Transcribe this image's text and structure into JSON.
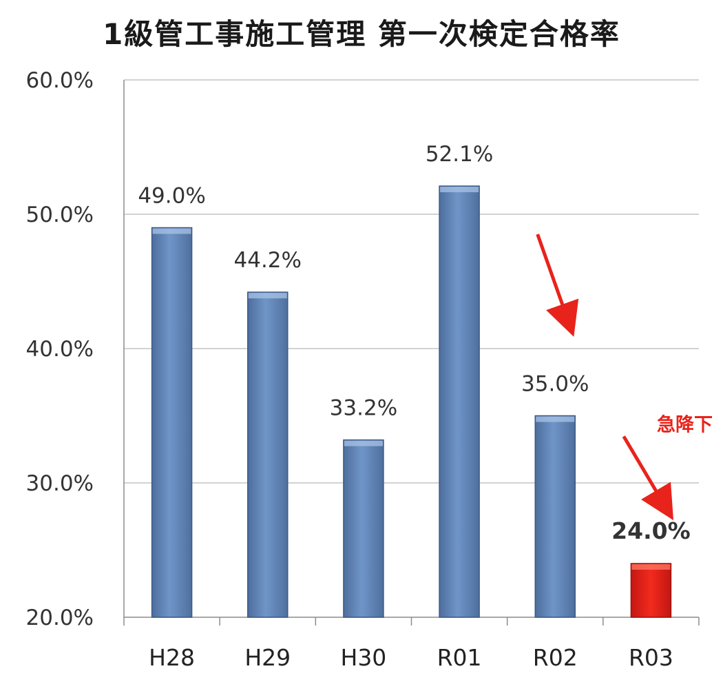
{
  "chart_data": {
    "type": "bar",
    "title": "1級管工事施工管理 第一次検定合格率",
    "categories": [
      "H28",
      "H29",
      "H30",
      "R01",
      "R02",
      "R03"
    ],
    "values": [
      49.0,
      44.2,
      33.2,
      52.1,
      35.0,
      24.0
    ],
    "data_labels": [
      "49.0%",
      "44.2%",
      "33.2%",
      "52.1%",
      "35.0%",
      "24.0%"
    ],
    "y_ticks": [
      "20.0%",
      "30.0%",
      "40.0%",
      "50.0%",
      "60.0%"
    ],
    "y_tick_values": [
      20,
      30,
      40,
      50,
      60
    ],
    "ylim": [
      20,
      60
    ],
    "grid": true,
    "highlight_index": 5,
    "annotation": "急降下",
    "colors": {
      "bar": "#6a8fc2",
      "bar_highlight": "#e8231b",
      "arrow": "#e8231b",
      "annotation": "#e8231b",
      "highlight_label": "#e8231b"
    }
  }
}
